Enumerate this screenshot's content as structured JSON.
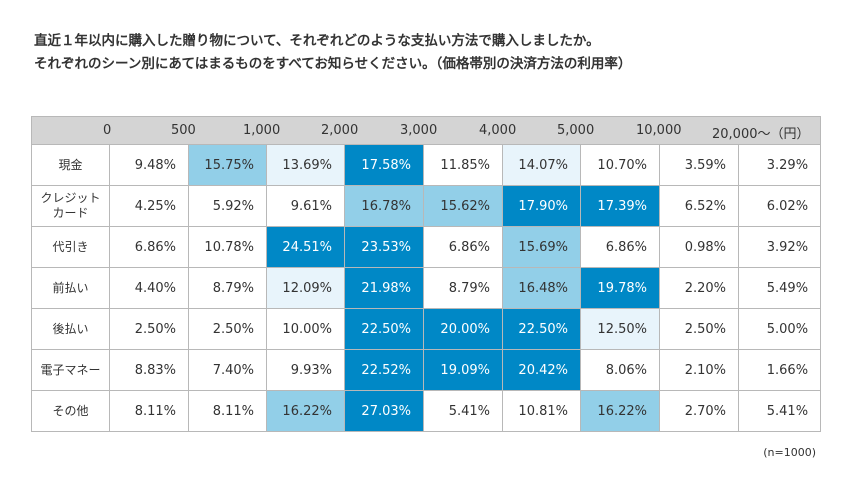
{
  "title": {
    "line1": "直近１年以内に購入した贈り物について、それぞれどのような支払い方法で購入しましたか。",
    "line2": "それぞれのシーン別にあてはまるものをすべてお知らせください。（価格帯別の決済方法の利用率）"
  },
  "note": "(n=1000)",
  "chart_data": {
    "type": "table",
    "header_ticks": [
      "0",
      "500",
      "1,000",
      "2,000",
      "3,000",
      "4,000",
      "5,000",
      "10,000",
      "20,000〜（円）"
    ],
    "rows": [
      {
        "label": "現金",
        "values": [
          9.48,
          15.75,
          13.69,
          17.58,
          11.85,
          14.07,
          10.7,
          3.59,
          3.29
        ],
        "highlight": [
          0,
          2,
          1,
          3,
          0,
          1,
          0,
          0,
          0
        ]
      },
      {
        "label": "クレジットカード",
        "values": [
          4.25,
          5.92,
          9.61,
          16.78,
          15.62,
          17.9,
          17.39,
          6.52,
          6.02
        ],
        "highlight": [
          0,
          0,
          0,
          2,
          2,
          3,
          3,
          0,
          0
        ]
      },
      {
        "label": "代引き",
        "values": [
          6.86,
          10.78,
          24.51,
          23.53,
          6.86,
          15.69,
          6.86,
          0.98,
          3.92
        ],
        "highlight": [
          0,
          0,
          3,
          3,
          0,
          2,
          0,
          0,
          0
        ]
      },
      {
        "label": "前払い",
        "values": [
          4.4,
          8.79,
          12.09,
          21.98,
          8.79,
          16.48,
          19.78,
          2.2,
          5.49
        ],
        "highlight": [
          0,
          0,
          1,
          3,
          0,
          2,
          3,
          0,
          0
        ]
      },
      {
        "label": "後払い",
        "values": [
          2.5,
          2.5,
          10.0,
          22.5,
          20.0,
          22.5,
          12.5,
          2.5,
          5.0
        ],
        "highlight": [
          0,
          0,
          0,
          3,
          3,
          3,
          1,
          0,
          0
        ]
      },
      {
        "label": "電子マネー",
        "values": [
          8.83,
          7.4,
          9.93,
          22.52,
          19.09,
          20.42,
          8.06,
          2.1,
          1.66
        ],
        "highlight": [
          0,
          0,
          0,
          3,
          3,
          3,
          0,
          0,
          0
        ]
      },
      {
        "label": "その他",
        "values": [
          8.11,
          8.11,
          16.22,
          27.03,
          5.41,
          10.81,
          16.22,
          2.7,
          5.41
        ],
        "highlight": [
          0,
          0,
          2,
          3,
          0,
          0,
          2,
          0,
          0
        ]
      }
    ],
    "unit": "%",
    "colors": {
      "level0": "#ffffff",
      "level1": "#e8f4fb",
      "level2": "#92cfe8",
      "level3": "#0088c6",
      "header": "#d4d4d4",
      "border": "#b8b8b8"
    }
  }
}
